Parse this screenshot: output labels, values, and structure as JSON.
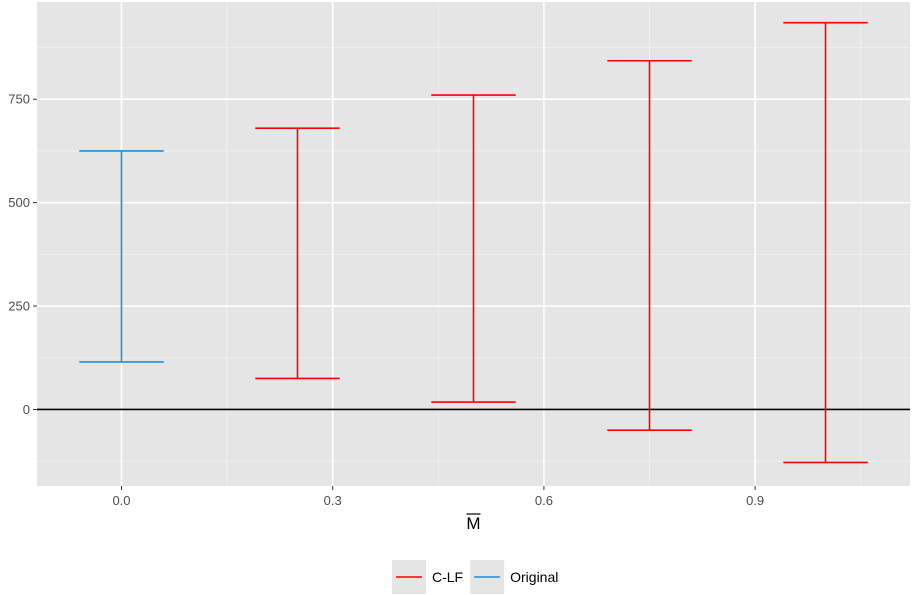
{
  "chart_data": {
    "type": "errorbar",
    "xlabel": "M",
    "xlabel_overline": true,
    "ylabel": "",
    "xlim": [
      -0.12,
      1.12
    ],
    "ylim": [
      -185,
      985
    ],
    "x_ticks": [
      0.0,
      0.3,
      0.6,
      0.9
    ],
    "x_tick_labels": [
      "0.0",
      "0.3",
      "0.6",
      "0.9"
    ],
    "y_ticks": [
      0,
      250,
      500,
      750
    ],
    "y_tick_labels": [
      "0",
      "250",
      "500",
      "750"
    ],
    "hline": 0,
    "grid": true,
    "legend_position": "bottom",
    "legend": [
      "C-LF",
      "Original"
    ],
    "colors": {
      "C-LF": "#ff0000",
      "Original": "#1f8fd6"
    },
    "series": [
      {
        "name": "Original",
        "points": [
          {
            "x": 0.0,
            "low": 115,
            "high": 625
          }
        ]
      },
      {
        "name": "C-LF",
        "points": [
          {
            "x": 0.25,
            "low": 75,
            "high": 680
          },
          {
            "x": 0.5,
            "low": 18,
            "high": 760
          },
          {
            "x": 0.75,
            "low": -50,
            "high": 843
          },
          {
            "x": 1.0,
            "low": -128,
            "high": 935
          }
        ]
      }
    ]
  }
}
